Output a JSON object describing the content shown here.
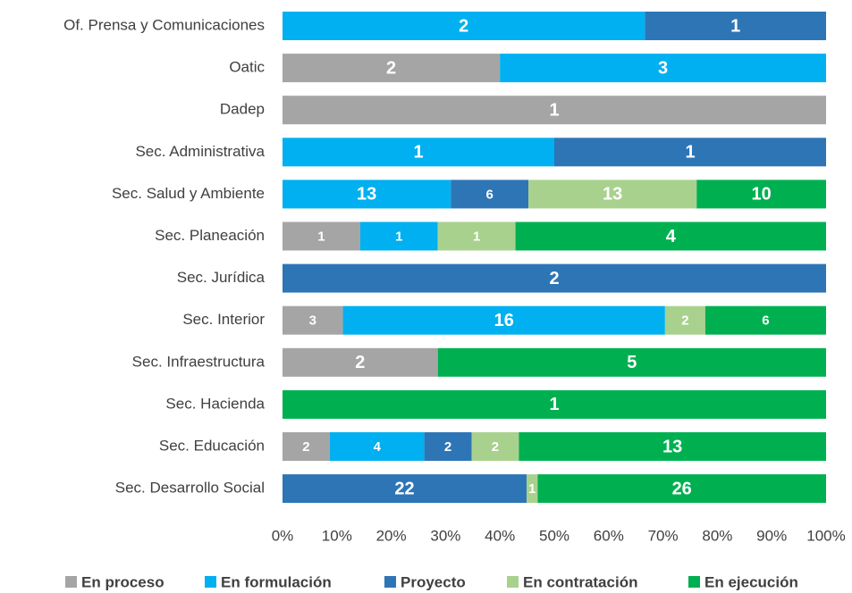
{
  "chart_data": {
    "type": "bar",
    "orientation": "horizontal",
    "stacked": "percent",
    "categories": [
      "Of. Prensa y Comunicaciones",
      "Oatic",
      "Dadep",
      "Sec. Administrativa",
      "Sec. Salud y Ambiente",
      "Sec. Planeación",
      "Sec. Jurídica",
      "Sec. Interior",
      "Sec. Infraestructura",
      "Sec. Hacienda",
      "Sec. Educación",
      "Sec. Desarrollo Social"
    ],
    "series": [
      {
        "name": "En proceso",
        "color": "#a5a5a5",
        "values": [
          null,
          2,
          1,
          null,
          null,
          1,
          null,
          3,
          2,
          null,
          2,
          null
        ]
      },
      {
        "name": "En formulación",
        "color": "#00b0f0",
        "values": [
          2,
          3,
          null,
          1,
          13,
          1,
          null,
          16,
          null,
          null,
          4,
          null
        ]
      },
      {
        "name": "Proyecto",
        "color": "#2e75b6",
        "values": [
          1,
          null,
          null,
          1,
          6,
          null,
          2,
          null,
          null,
          null,
          2,
          22
        ]
      },
      {
        "name": "En contratación",
        "color": "#a9d18e",
        "values": [
          null,
          null,
          null,
          null,
          13,
          1,
          null,
          2,
          null,
          null,
          2,
          1
        ]
      },
      {
        "name": "En ejecución",
        "color": "#00b050",
        "values": [
          null,
          null,
          null,
          null,
          10,
          4,
          null,
          6,
          5,
          1,
          13,
          26
        ]
      }
    ],
    "xlim": [
      0,
      100
    ],
    "xticks": [
      {
        "value": 0,
        "label": "0%"
      },
      {
        "value": 10,
        "label": "10%"
      },
      {
        "value": 20,
        "label": "20%"
      },
      {
        "value": 30,
        "label": "30%"
      },
      {
        "value": 40,
        "label": "40%"
      },
      {
        "value": 50,
        "label": "50%"
      },
      {
        "value": 60,
        "label": "60%"
      },
      {
        "value": 70,
        "label": "70%"
      },
      {
        "value": 80,
        "label": "80%"
      },
      {
        "value": 90,
        "label": "90%"
      },
      {
        "value": 100,
        "label": "100%"
      }
    ],
    "legend": "bottom"
  }
}
